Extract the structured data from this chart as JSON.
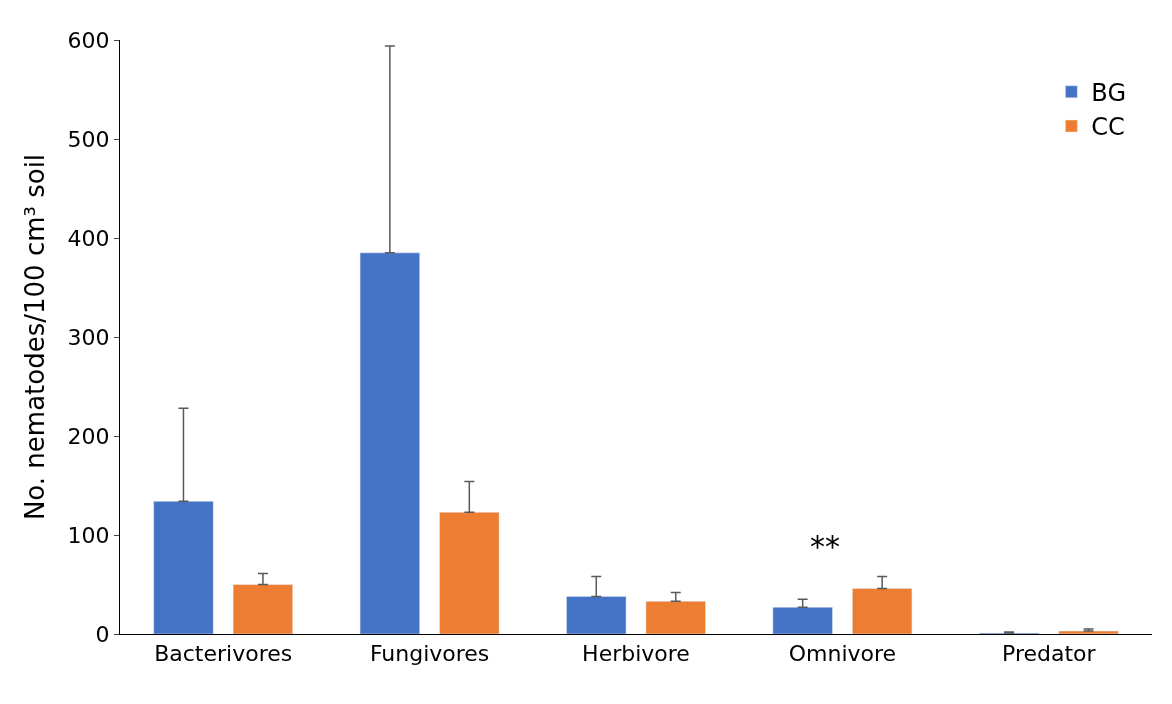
{
  "chart_data": {
    "type": "bar",
    "ylabel": "No. nematodes/100 cm³ soil",
    "categories": [
      "Bacterivores",
      "Fungivores",
      "Herbivore",
      "Omnivore",
      "Predator"
    ],
    "series": [
      {
        "name": "BG",
        "color": "#4472c4",
        "values": [
          134,
          385,
          38,
          27,
          1
        ],
        "errors": [
          [
            134,
            228
          ],
          [
            385,
            594
          ],
          [
            38,
            58
          ],
          [
            27,
            35
          ],
          [
            1,
            2
          ]
        ]
      },
      {
        "name": "CC",
        "color": "#ed7d31",
        "values": [
          50,
          123,
          33,
          46,
          3
        ],
        "errors": [
          [
            50,
            61
          ],
          [
            123,
            154
          ],
          [
            33,
            42
          ],
          [
            46,
            58
          ],
          [
            3,
            5
          ]
        ]
      }
    ],
    "ylim": [
      0,
      600
    ],
    "yticks": [
      0,
      100,
      200,
      300,
      400,
      500,
      600
    ],
    "legend": "top right",
    "annotations": [
      "**"
    ]
  }
}
